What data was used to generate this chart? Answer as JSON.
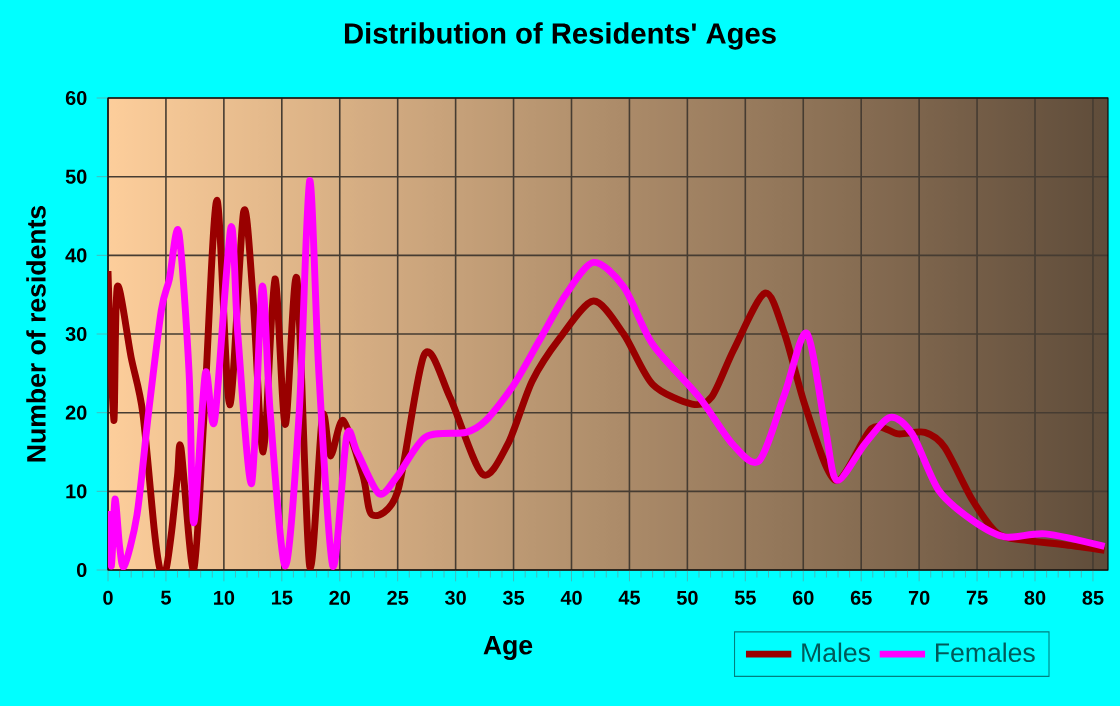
{
  "chart_data": {
    "type": "line",
    "title": "Distribution of Residents' Ages",
    "xlabel": "Age",
    "ylabel": "Number of residents",
    "xlim": [
      0,
      86.3
    ],
    "ylim": [
      0,
      60
    ],
    "xticks": [
      0,
      5,
      10,
      15,
      20,
      25,
      30,
      35,
      40,
      45,
      50,
      55,
      60,
      65,
      70,
      75,
      80,
      85
    ],
    "yticks": [
      0,
      10,
      20,
      30,
      40,
      50,
      60
    ],
    "grid": true,
    "legend": "bottom",
    "marker": "none",
    "line_style": "solid",
    "series": [
      {
        "name": "Males",
        "color": "#990000",
        "x": [
          0,
          0.5,
          0.8,
          2,
          3,
          4,
          4.5,
          5,
          5.5,
          6,
          6.3,
          7.4,
          8.3,
          9.4,
          10.5,
          11.7,
          12.5,
          13.4,
          14.4,
          15.3,
          16.3,
          17.4,
          18.5,
          19.2,
          20.3,
          22,
          22.8,
          25,
          27.3,
          29.5,
          32.3,
          34.5,
          36.6,
          39,
          41.9,
          44.5,
          47,
          50.4,
          52.1,
          54,
          56.7,
          58.4,
          60.2,
          62.8,
          65.9,
          68.2,
          70.5,
          72.2,
          74.6,
          76.8,
          79.1,
          82.6,
          86
        ],
        "values": [
          38,
          19,
          36,
          27,
          20,
          5,
          0,
          0,
          5,
          12,
          15.5,
          0,
          20,
          47,
          21,
          45.5,
          35,
          15,
          37,
          18.5,
          37,
          0.5,
          19.5,
          14.5,
          19,
          12,
          7,
          10,
          27.4,
          22,
          12.2,
          16,
          24,
          29.5,
          34.2,
          30,
          23.6,
          21.1,
          22,
          28,
          35.2,
          30,
          20.7,
          11.4,
          18,
          17.3,
          17.5,
          15.6,
          8.9,
          4.6,
          3.8,
          3.2,
          2.5
        ]
      },
      {
        "name": "Females",
        "color": "#ff00ff",
        "x": [
          0,
          0.3,
          0.6,
          1,
          1.4,
          2.5,
          3.5,
          4.6,
          5.3,
          6.1,
          7,
          7.4,
          8.4,
          9.2,
          10.6,
          11.2,
          12.4,
          13.3,
          14,
          15.3,
          16.5,
          17.4,
          18.2,
          19.4,
          20.6,
          21.5,
          23.4,
          25,
          27.4,
          30.9,
          32.6,
          35,
          37.2,
          39.5,
          41.9,
          44.5,
          47,
          51,
          53.9,
          56.2,
          58.4,
          60.3,
          61.9,
          62.9,
          65.3,
          67.5,
          69.4,
          71.7,
          74.6,
          77.4,
          80.9,
          86
        ],
        "values": [
          7.5,
          0.5,
          9,
          3,
          0.5,
          7,
          20,
          33,
          37,
          43,
          25,
          6,
          25,
          19,
          43.5,
          30,
          11,
          36,
          20,
          0.5,
          20,
          49.5,
          25,
          0.5,
          17,
          15,
          9.7,
          12,
          16.9,
          17.5,
          19,
          23.5,
          29.1,
          35,
          39.1,
          36,
          28.7,
          22,
          16,
          13.9,
          22.4,
          30.1,
          18.1,
          11.4,
          16,
          19.4,
          17.3,
          10.1,
          6.3,
          4.2,
          4.6,
          3
        ]
      }
    ]
  }
}
